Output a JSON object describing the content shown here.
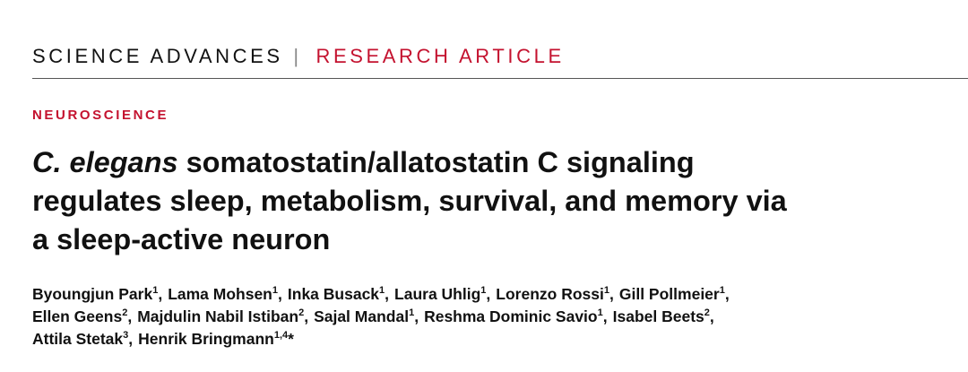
{
  "header": {
    "journal": "SCIENCE ADVANCES",
    "divider": "|",
    "article_type": "RESEARCH ARTICLE"
  },
  "section": "NEUROSCIENCE",
  "title": {
    "lines": [
      [
        {
          "text": "C. elegans",
          "italic": true
        },
        {
          "text": " somatostatin/allatostatin C signaling",
          "italic": false
        }
      ],
      [
        {
          "text": "regulates sleep, metabolism, survival, and memory via",
          "italic": false
        }
      ],
      [
        {
          "text": "a sleep-active neuron",
          "italic": false
        }
      ]
    ]
  },
  "authors": {
    "lines": [
      [
        {
          "name": "Byoungjun Park",
          "affiliation": "1",
          "punctuation": ","
        },
        {
          "name": "Lama Mohsen",
          "affiliation": "1",
          "punctuation": ","
        },
        {
          "name": "Inka Busack",
          "affiliation": "1",
          "punctuation": ","
        },
        {
          "name": "Laura Uhlig",
          "affiliation": "1",
          "punctuation": ","
        },
        {
          "name": "Lorenzo Rossi",
          "affiliation": "1",
          "punctuation": ","
        },
        {
          "name": "Gill Pollmeier",
          "affiliation": "1",
          "punctuation": ","
        }
      ],
      [
        {
          "name": "Ellen Geens",
          "affiliation": "2",
          "punctuation": ","
        },
        {
          "name": "Majdulin Nabil Istiban",
          "affiliation": "2",
          "punctuation": ","
        },
        {
          "name": "Sajal Mandal",
          "affiliation": "1",
          "punctuation": ","
        },
        {
          "name": "Reshma Dominic Savio",
          "affiliation": "1",
          "punctuation": ","
        },
        {
          "name": "Isabel Beets",
          "affiliation": "2",
          "punctuation": ","
        }
      ],
      [
        {
          "name": "Attila Stetak",
          "affiliation": "3",
          "punctuation": ","
        },
        {
          "name": "Henrik Bringmann",
          "affiliation": "1,4",
          "punctuation": "*"
        }
      ]
    ]
  }
}
